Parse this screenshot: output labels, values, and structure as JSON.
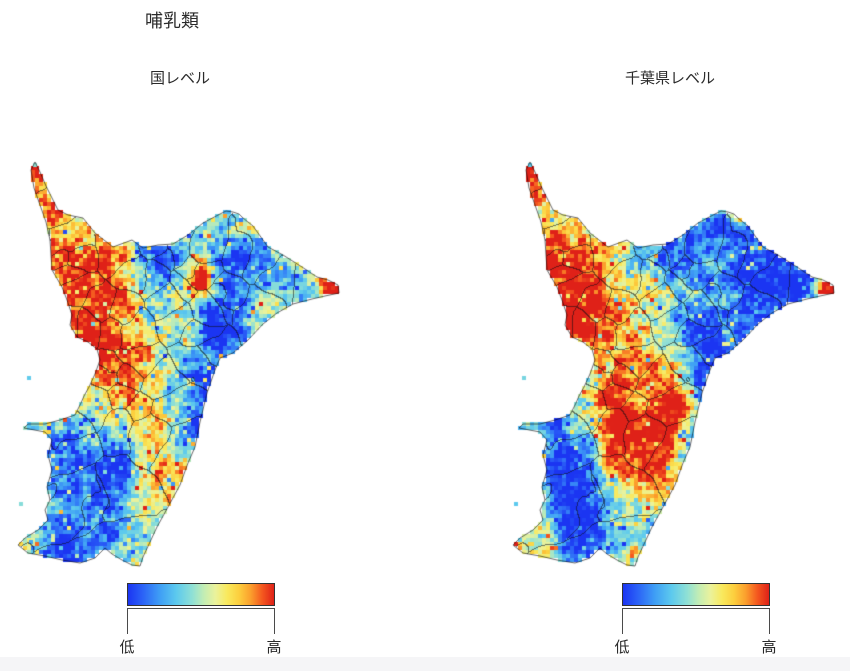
{
  "title": "哺乳類",
  "panels": [
    {
      "label": "国レベル",
      "legend_low": "低",
      "legend_high": "高",
      "seed": 11,
      "field": [
        [
          28,
          30,
          24,
          0.7
        ],
        [
          62,
          125,
          42,
          0.75
        ],
        [
          75,
          168,
          32,
          0.5
        ],
        [
          95,
          200,
          30,
          0.35
        ],
        [
          120,
          240,
          26,
          0.25
        ],
        [
          83,
          222,
          14,
          0.35
        ],
        [
          105,
          155,
          14,
          0.35
        ],
        [
          185,
          128,
          16,
          0.8
        ],
        [
          318,
          140,
          12,
          1.0
        ],
        [
          238,
          72,
          10,
          0.55
        ],
        [
          135,
          82,
          24,
          -0.4
        ],
        [
          150,
          105,
          28,
          -0.45
        ],
        [
          250,
          100,
          30,
          -0.25
        ],
        [
          222,
          130,
          28,
          -0.8
        ],
        [
          207,
          180,
          24,
          -0.8
        ],
        [
          194,
          232,
          22,
          -0.65
        ],
        [
          190,
          275,
          24,
          -0.5
        ],
        [
          100,
          315,
          26,
          -0.5
        ],
        [
          57,
          325,
          34,
          -0.5
        ],
        [
          75,
          382,
          32,
          -0.5
        ],
        [
          44,
          290,
          20,
          -0.4
        ],
        [
          142,
          332,
          28,
          0.45
        ],
        [
          168,
          315,
          14,
          0.3
        ],
        [
          45,
          405,
          22,
          -0.3
        ]
      ]
    },
    {
      "label": "千葉県レベル",
      "legend_low": "低",
      "legend_high": "高",
      "seed": 27,
      "field": [
        [
          28,
          30,
          24,
          0.8
        ],
        [
          62,
          125,
          42,
          0.75
        ],
        [
          75,
          168,
          32,
          0.45
        ],
        [
          318,
          140,
          12,
          1.0
        ],
        [
          230,
          64,
          16,
          0.7
        ],
        [
          235,
          100,
          42,
          -0.75
        ],
        [
          272,
          125,
          34,
          -0.75
        ],
        [
          250,
          152,
          30,
          -0.75
        ],
        [
          218,
          140,
          30,
          -0.8
        ],
        [
          208,
          190,
          28,
          -0.8
        ],
        [
          196,
          238,
          26,
          -0.65
        ],
        [
          188,
          282,
          24,
          -0.55
        ],
        [
          150,
          100,
          30,
          -0.4
        ],
        [
          127,
          213,
          26,
          0.48
        ],
        [
          118,
          250,
          30,
          0.6
        ],
        [
          148,
          285,
          30,
          0.62
        ],
        [
          112,
          298,
          24,
          0.5
        ],
        [
          166,
          250,
          24,
          0.55
        ],
        [
          140,
          320,
          20,
          0.45
        ],
        [
          185,
          330,
          20,
          0.35
        ],
        [
          55,
          320,
          38,
          -0.5
        ],
        [
          72,
          382,
          32,
          -0.5
        ],
        [
          44,
          272,
          20,
          -0.4
        ],
        [
          122,
          405,
          8,
          0.5
        ]
      ]
    }
  ],
  "colormap": {
    "stops": [
      [
        0,
        "#1b35f2"
      ],
      [
        0.1,
        "#2b62f7"
      ],
      [
        0.22,
        "#3f9ff5"
      ],
      [
        0.33,
        "#5cc9ee"
      ],
      [
        0.44,
        "#8fe0d5"
      ],
      [
        0.52,
        "#c3edb4"
      ],
      [
        0.6,
        "#ebf29b"
      ],
      [
        0.68,
        "#f9e95d"
      ],
      [
        0.76,
        "#fccf3e"
      ],
      [
        0.84,
        "#fb9f2d"
      ],
      [
        0.92,
        "#f4581f"
      ],
      [
        1,
        "#df2118"
      ]
    ]
  },
  "map": {
    "outline": [
      [
        20,
        12
      ],
      [
        25,
        22
      ],
      [
        31,
        36
      ],
      [
        38,
        50
      ],
      [
        43,
        60
      ],
      [
        53,
        65
      ],
      [
        68,
        68
      ],
      [
        80,
        83
      ],
      [
        98,
        97
      ],
      [
        117,
        90
      ],
      [
        128,
        98
      ],
      [
        143,
        95
      ],
      [
        158,
        94
      ],
      [
        173,
        85
      ],
      [
        188,
        73
      ],
      [
        205,
        64
      ],
      [
        211,
        61
      ],
      [
        218,
        62
      ],
      [
        224,
        64
      ],
      [
        228,
        68
      ],
      [
        238,
        76
      ],
      [
        253,
        97
      ],
      [
        268,
        105
      ],
      [
        287,
        117
      ],
      [
        302,
        127
      ],
      [
        313,
        130
      ],
      [
        323,
        135
      ],
      [
        324,
        143
      ],
      [
        310,
        146
      ],
      [
        297,
        149
      ],
      [
        278,
        154
      ],
      [
        262,
        163
      ],
      [
        248,
        174
      ],
      [
        233,
        190
      ],
      [
        218,
        203
      ],
      [
        205,
        208
      ],
      [
        200,
        220
      ],
      [
        192,
        243
      ],
      [
        185,
        272
      ],
      [
        180,
        297
      ],
      [
        173,
        313
      ],
      [
        165,
        335
      ],
      [
        153,
        357
      ],
      [
        142,
        377
      ],
      [
        135,
        392
      ],
      [
        128,
        407
      ],
      [
        125,
        416
      ],
      [
        117,
        415
      ],
      [
        107,
        410
      ],
      [
        97,
        404
      ],
      [
        90,
        398
      ],
      [
        80,
        408
      ],
      [
        65,
        413
      ],
      [
        47,
        410
      ],
      [
        30,
        406
      ],
      [
        13,
        403
      ],
      [
        3,
        395
      ],
      [
        10,
        388
      ],
      [
        23,
        380
      ],
      [
        33,
        370
      ],
      [
        30,
        360
      ],
      [
        35,
        350
      ],
      [
        32,
        337
      ],
      [
        37,
        320
      ],
      [
        33,
        305
      ],
      [
        37,
        290
      ],
      [
        30,
        282
      ],
      [
        9,
        278
      ],
      [
        13,
        274
      ],
      [
        30,
        274
      ],
      [
        45,
        270
      ],
      [
        60,
        265
      ],
      [
        66,
        253
      ],
      [
        69,
        246
      ],
      [
        74,
        237
      ],
      [
        80,
        224
      ],
      [
        85,
        210
      ],
      [
        82,
        199
      ],
      [
        73,
        192
      ],
      [
        62,
        187
      ],
      [
        55,
        175
      ],
      [
        57,
        165
      ],
      [
        52,
        150
      ],
      [
        47,
        137
      ],
      [
        37,
        120
      ],
      [
        35,
        90
      ],
      [
        31,
        72
      ],
      [
        25,
        55
      ],
      [
        19,
        38
      ],
      [
        16,
        20
      ]
    ],
    "cell": 4,
    "base": 0.52,
    "blob_clamp": [
      -0.48,
      0.5
    ],
    "noise": {
      "coarse": 34,
      "fine": 9,
      "amp_coarse": 0.34,
      "amp_fine": 0.42,
      "jitter": 0.3
    },
    "boundaries": {
      "count": 54,
      "seed": 7,
      "wobble": 10
    },
    "stray_cells": [
      [
        12,
        226
      ],
      [
        4,
        352
      ],
      [
        14,
        390
      ],
      [
        18,
        13
      ]
    ]
  },
  "chart_data": {
    "type": "heatmap",
    "title": "哺乳類",
    "legend": {
      "low_label": "低",
      "high_label": "高"
    },
    "panels": [
      {
        "label": "国レベル",
        "description": "Chiba prefecture raster map, national-level mammal priority: high (red) in the northwest lobe and Tokyo-bay side, a low (blue) diagonal band through the center-east, low in the southwest, high spot at the eastern cape"
      },
      {
        "label": "千葉県レベル",
        "description": "Chiba prefecture raster map, prefecture-level mammal priority: high (red) in the northwest and in the central-south cluster, large low (blue) region in the northeast and along the southeast band, high spot at the eastern cape"
      }
    ]
  }
}
